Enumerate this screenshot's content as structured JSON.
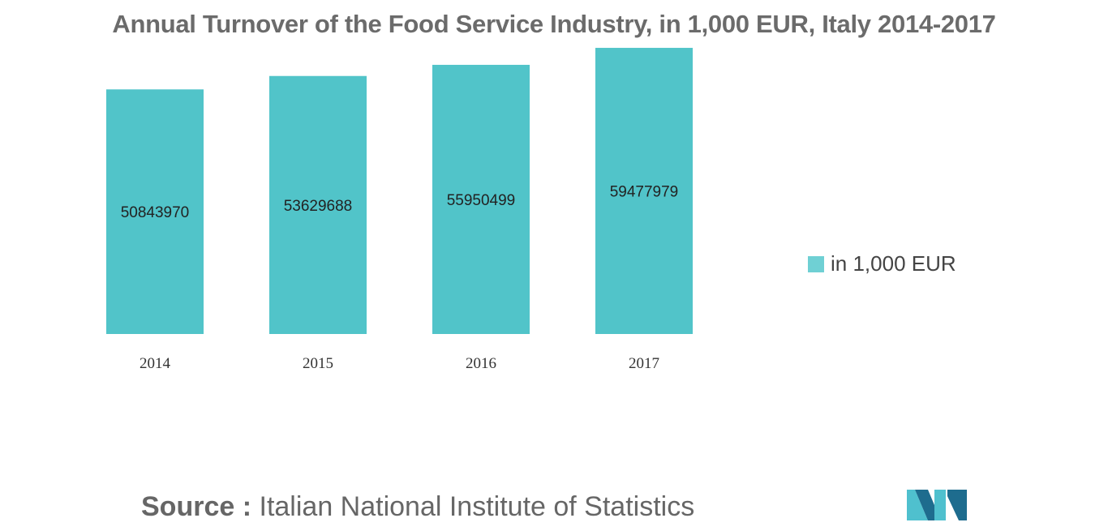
{
  "chart_data": {
    "type": "bar",
    "title": "Annual Turnover of the Food Service Industry, in 1,000 EUR, Italy 2014-2017",
    "categories": [
      "2014",
      "2015",
      "2016",
      "2017"
    ],
    "series": [
      {
        "name": "in 1,000 EUR",
        "values": [
          50843970,
          53629688,
          55950499,
          59477979
        ]
      }
    ],
    "xlabel": "",
    "ylabel": "",
    "ylim": [
      0,
      61000000
    ],
    "grid": false,
    "legend": "right",
    "bar_color": "#51c4c9"
  },
  "source": {
    "label": "Source :",
    "text": "Italian National Institute of Statistics"
  },
  "colors": {
    "bar": "#51c4c9",
    "legend_swatch": "#6fd0d4",
    "logo_dark": "#1e6c8e",
    "logo_light": "#4fc0ce"
  },
  "logo": {
    "icon": "mordor-intelligence-logo"
  }
}
